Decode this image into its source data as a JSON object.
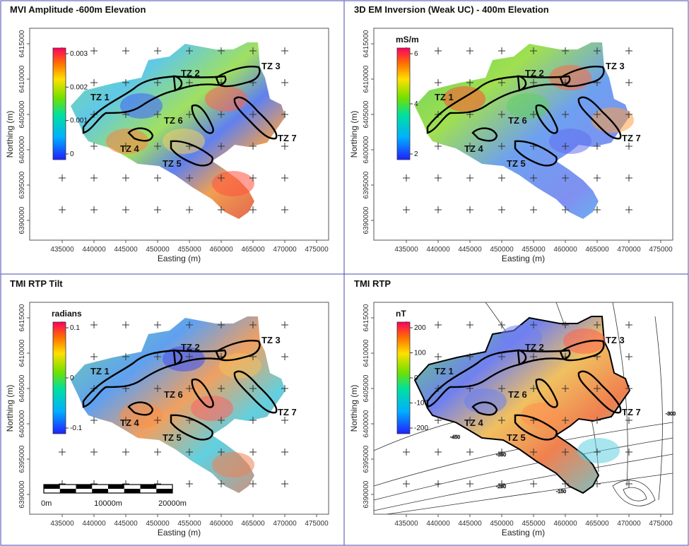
{
  "panels": [
    {
      "id": "mvi",
      "title": "MVI Amplitude -600m Elevation",
      "xlabel": "Easting (m)",
      "ylabel": "Northing (m)",
      "colorbar_unit": "",
      "colorbar_ticks": [
        "0.003",
        "0.002",
        "0.001",
        "0"
      ],
      "style": "mvi",
      "overlay_contours": false
    },
    {
      "id": "em",
      "title": "3D EM Inversion (Weak UC) - 400m Elevation",
      "xlabel": "Easting (m)",
      "ylabel": "Northing (m)",
      "colorbar_unit": "mS/m",
      "colorbar_ticks": [
        "6",
        "4",
        "2"
      ],
      "style": "em",
      "overlay_contours": false
    },
    {
      "id": "tilt",
      "title": "TMI RTP Tilt",
      "xlabel": "Easting (m)",
      "ylabel": "Northing (m)",
      "colorbar_unit": "radians",
      "colorbar_ticks": [
        "0.1",
        "0",
        "-0.1"
      ],
      "style": "tilt",
      "overlay_contours": false
    },
    {
      "id": "rtp",
      "title": "TMI RTP",
      "xlabel": "Easting (m)",
      "ylabel": "Northing (m)",
      "colorbar_unit": "nT",
      "colorbar_ticks": [
        "200",
        "100",
        "0",
        "-100",
        "-200"
      ],
      "style": "rtp",
      "overlay_contours": true,
      "contour_labels": [
        "-450",
        "-350",
        "-300",
        "-200",
        "-150"
      ]
    }
  ],
  "x_ticks": [
    "435000",
    "440000",
    "445000",
    "450000",
    "455000",
    "460000",
    "465000",
    "470000",
    "475000"
  ],
  "y_ticks": [
    "6390000",
    "6395000",
    "6400000",
    "6405000",
    "6410000",
    "6415000"
  ],
  "zones": [
    {
      "label": "TZ 1"
    },
    {
      "label": "TZ 2"
    },
    {
      "label": "TZ 3"
    },
    {
      "label": "TZ 4"
    },
    {
      "label": "TZ 5"
    },
    {
      "label": "TZ 6"
    },
    {
      "label": "TZ 7"
    }
  ],
  "scalebar": {
    "start": "0m",
    "mid": "10000m",
    "end": "20000m"
  }
}
